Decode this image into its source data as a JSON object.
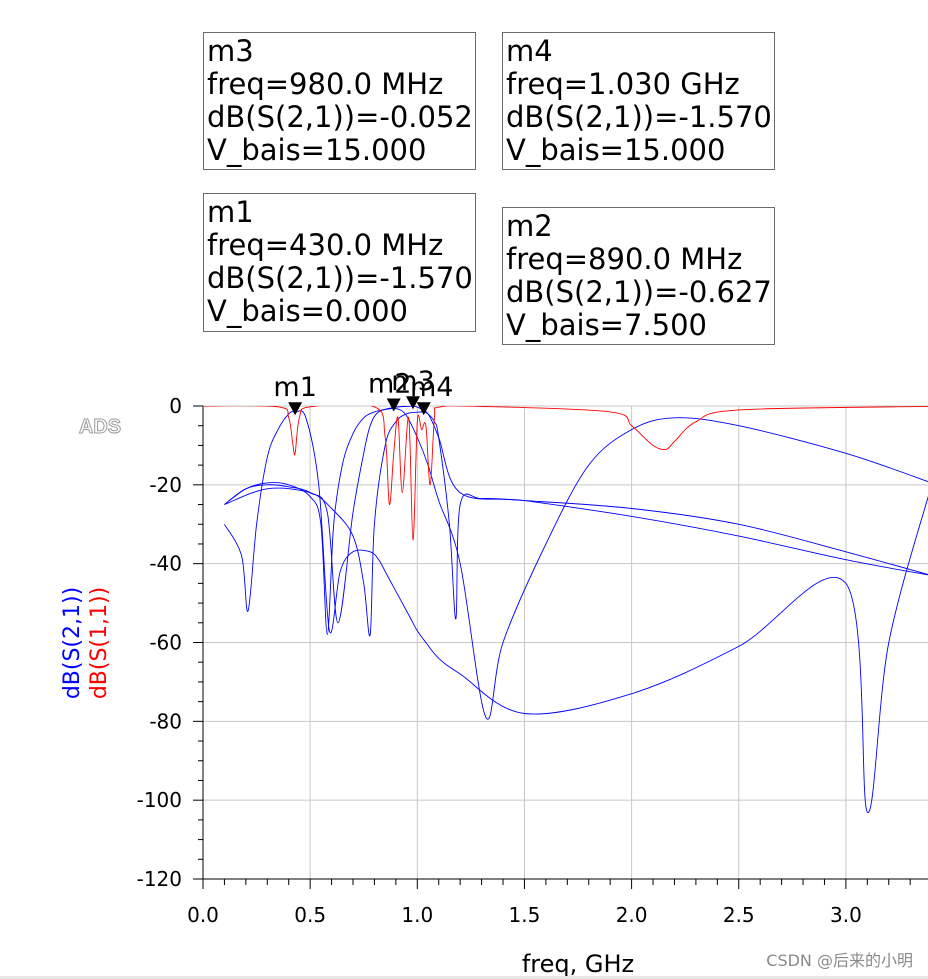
{
  "chart_data": {
    "type": "line",
    "title": "",
    "watermark": "ADS",
    "xlabel": "freq, GHz",
    "ylabel_series": [
      {
        "text": "dB(S(2,1))",
        "color": "#0000ff"
      },
      {
        "text": "dB(S(1,1))",
        "color": "#ff0000"
      }
    ],
    "xlim": [
      0.0,
      3.4
    ],
    "ylim": [
      -120,
      0
    ],
    "xticks": [
      "0.0",
      "0.5",
      "1.0",
      "1.5",
      "2.0",
      "2.5",
      "3.0"
    ],
    "xtick_values": [
      0.0,
      0.5,
      1.0,
      1.5,
      2.0,
      2.5,
      3.0
    ],
    "yticks": [
      "0",
      "-20",
      "-40",
      "-60",
      "-80",
      "-100",
      "-120"
    ],
    "ytick_values": [
      0,
      -20,
      -40,
      -60,
      -80,
      -100,
      -120
    ],
    "grid": true,
    "series": [
      {
        "name": "dB(S(2,1))",
        "group": "s21",
        "color": "#0000ff",
        "x": [
          0.1,
          0.18,
          0.21,
          0.25,
          0.3,
          0.35,
          0.4,
          0.43,
          0.48,
          0.54,
          0.59,
          0.64,
          0.7,
          0.78,
          0.82,
          0.86,
          0.9,
          0.96,
          1.0,
          1.04,
          1.1,
          1.2,
          1.5,
          2.0,
          2.5,
          3.0,
          3.1,
          3.2,
          3.4
        ],
        "y": [
          -30,
          -38,
          -52,
          -30,
          -13,
          -6,
          -2,
          -1.57,
          -3,
          -20,
          -57,
          -42,
          -37,
          -37,
          -39,
          -43,
          -47,
          -53,
          -57,
          -60,
          -64,
          -68,
          -78,
          -73,
          -61,
          -45,
          -103,
          -60,
          -20
        ]
      },
      {
        "name": "dB(S(2,1))",
        "group": "s21",
        "color": "#0000ff",
        "x": [
          0.1,
          0.2,
          0.3,
          0.4,
          0.5,
          0.55,
          0.58,
          0.61,
          0.65,
          0.7,
          0.75,
          0.8,
          0.85,
          0.89,
          0.92,
          0.95,
          1.0,
          1.05,
          1.1,
          1.2,
          1.32,
          1.4,
          1.6,
          1.8,
          2.0,
          2.2,
          2.5,
          3.0,
          3.4
        ],
        "y": [
          -25,
          -21,
          -19.5,
          -20,
          -23,
          -30,
          -58,
          -30,
          -15,
          -7,
          -3,
          -1.5,
          -0.9,
          -0.627,
          -1,
          -2.5,
          -8,
          -15,
          -24,
          -40,
          -79,
          -60,
          -35,
          -15,
          -6,
          -3,
          -5,
          -12,
          -19.5
        ]
      },
      {
        "name": "dB(S(2,1))",
        "group": "s21",
        "color": "#0000ff",
        "x": [
          0.1,
          0.2,
          0.3,
          0.4,
          0.5,
          0.58,
          0.63,
          0.7,
          0.75,
          0.78,
          0.82,
          0.9,
          0.95,
          0.98,
          1.0,
          1.05,
          1.1,
          1.2,
          1.5,
          2.0,
          2.5,
          3.0,
          3.4
        ],
        "y": [
          -25,
          -21,
          -20,
          -20.5,
          -22,
          -27,
          -55,
          -27,
          -12,
          -5,
          -1.5,
          -0.3,
          -0.1,
          -0.052,
          -0.3,
          -2,
          -8,
          -22,
          -24,
          -28,
          -33,
          -39,
          -43
        ]
      },
      {
        "name": "dB(S(2,1))",
        "group": "s21",
        "color": "#0000ff",
        "x": [
          0.1,
          0.3,
          0.5,
          0.6,
          0.7,
          0.75,
          0.78,
          0.8,
          0.85,
          0.9,
          0.95,
          1.0,
          1.03,
          1.05,
          1.08,
          1.1,
          1.15,
          1.18,
          1.2,
          1.3,
          1.5,
          2.0,
          2.5,
          3.0,
          3.4
        ],
        "y": [
          -25,
          -21,
          -22,
          -26,
          -33,
          -45,
          -58,
          -30,
          -10,
          -4,
          -2,
          -1.57,
          -1.57,
          -2,
          -4,
          -8,
          -30,
          -54,
          -25,
          -23.5,
          -24,
          -26,
          -30,
          -37,
          -43
        ]
      },
      {
        "name": "dB(S(1,1))",
        "group": "s11",
        "color": "#ff0000",
        "x": [
          0.0,
          0.35,
          0.4,
          0.42,
          0.43,
          0.45,
          0.5,
          0.8,
          0.85,
          0.87,
          0.89,
          0.91,
          0.93,
          0.96,
          0.98,
          1.0,
          1.02,
          1.04,
          1.06,
          1.08,
          1.1,
          1.3,
          1.9,
          2.0,
          2.1,
          2.16,
          2.2,
          2.3,
          2.5,
          3.4
        ],
        "y": [
          0,
          -0.2,
          -3,
          -10,
          -12,
          -3,
          -0.2,
          -0.2,
          -8,
          -25,
          -12,
          -3,
          -22,
          -3,
          -34,
          -4,
          -6,
          -5,
          -20,
          -3,
          -0.3,
          -0.1,
          -1.5,
          -5,
          -10,
          -11,
          -9,
          -4,
          -1,
          -0.1
        ]
      }
    ],
    "markers": [
      {
        "name": "m1",
        "freq_ghz": 0.43,
        "value": -1.57,
        "label_dx": 0,
        "lines": [
          "m1",
          "freq=430.0 MHz",
          "dB(S(2,1))=-1.570",
          "V_bais=0.000"
        ]
      },
      {
        "name": "m2",
        "freq_ghz": 0.89,
        "value": -0.627,
        "label_dx": -4,
        "lines": [
          "m2",
          "freq=890.0 MHz",
          "dB(S(2,1))=-0.627",
          "V_bais=7.500"
        ]
      },
      {
        "name": "m3",
        "freq_ghz": 0.98,
        "value": -0.052,
        "label_dx": 0,
        "lines": [
          "m3",
          "freq=980.0 MHz",
          "dB(S(2,1))=-0.052",
          "V_bais=15.000"
        ]
      },
      {
        "name": "m4",
        "freq_ghz": 1.03,
        "value": -1.57,
        "label_dx": 8,
        "lines": [
          "m4",
          "freq=1.030 GHz",
          "dB(S(2,1))=-1.570",
          "V_bais=15.000"
        ]
      }
    ]
  },
  "footer": {
    "credit": "CSDN @后来的小明"
  }
}
